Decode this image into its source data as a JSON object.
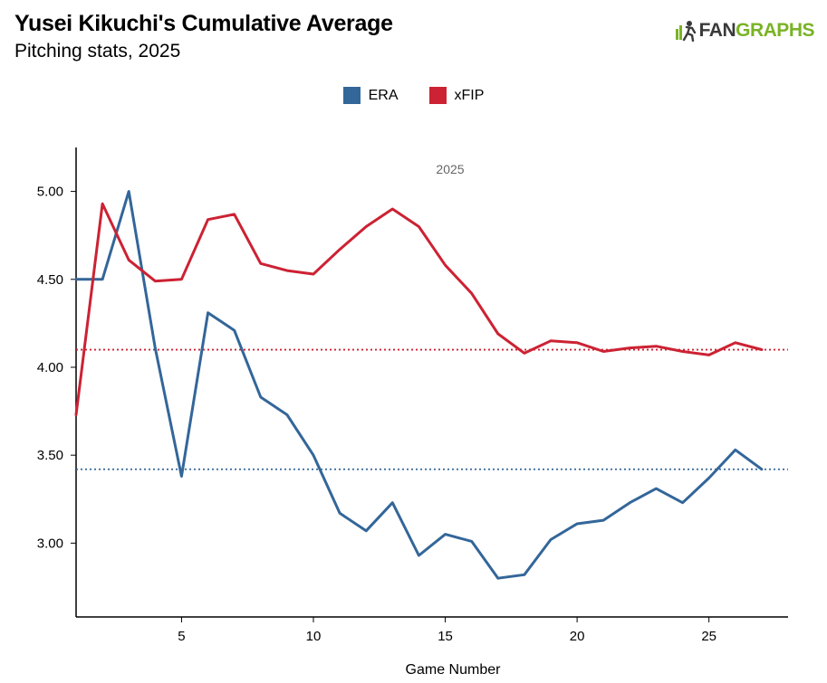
{
  "header": {
    "title": "Yusei Kikuchi's Cumulative Average",
    "subtitle": "Pitching stats, 2025"
  },
  "logo": {
    "part1": "FAN",
    "part2": "GRAPHS",
    "icon": "runner-logo-icon"
  },
  "colors": {
    "era": "#336699",
    "xfip": "#cc2233",
    "logo_green": "#7ab325"
  },
  "chart_data": {
    "type": "line",
    "annotation": "2025",
    "xlabel": "Game Number",
    "ylabel": "",
    "xlim": [
      1,
      28
    ],
    "ylim": [
      2.58,
      5.25
    ],
    "x_ticks": [
      5,
      10,
      15,
      20,
      25
    ],
    "y_ticks": [
      3.0,
      3.5,
      4.0,
      4.5,
      5.0
    ],
    "y_tick_labels": [
      "3.00",
      "3.50",
      "4.00",
      "4.50",
      "5.00"
    ],
    "grid": false,
    "legend_position": "top-center",
    "series": [
      {
        "name": "ERA",
        "color": "#336699",
        "x": [
          1,
          2,
          3,
          4,
          5,
          6,
          7,
          8,
          9,
          10,
          11,
          12,
          13,
          14,
          15,
          16,
          17,
          18,
          19,
          20,
          21,
          22,
          23,
          24,
          25,
          26,
          27
        ],
        "values": [
          4.5,
          4.5,
          5.0,
          4.11,
          3.38,
          4.31,
          4.21,
          3.83,
          3.73,
          3.5,
          3.17,
          3.07,
          3.23,
          2.93,
          3.05,
          3.01,
          2.8,
          2.82,
          3.02,
          3.11,
          3.13,
          3.23,
          3.31,
          3.23,
          3.37,
          3.53,
          3.42
        ],
        "reference_line": 3.42
      },
      {
        "name": "xFIP",
        "color": "#cc2233",
        "x": [
          1,
          2,
          3,
          4,
          5,
          6,
          7,
          8,
          9,
          10,
          11,
          12,
          13,
          14,
          15,
          16,
          17,
          18,
          19,
          20,
          21,
          22,
          23,
          24,
          25,
          26,
          27
        ],
        "values": [
          3.73,
          4.93,
          4.61,
          4.49,
          4.5,
          4.84,
          4.87,
          4.59,
          4.55,
          4.53,
          4.67,
          4.8,
          4.9,
          4.8,
          4.58,
          4.42,
          4.19,
          4.08,
          4.15,
          4.14,
          4.09,
          4.11,
          4.12,
          4.09,
          4.07,
          4.14,
          4.1
        ],
        "reference_line": 4.1
      }
    ]
  }
}
